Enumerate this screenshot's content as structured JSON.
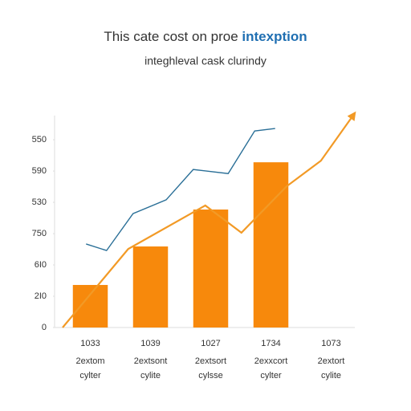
{
  "chart_data": {
    "type": "bar",
    "title": "This cate cost on proe",
    "title_highlight": "intexption",
    "subtitle": "integhleval cask clurindy",
    "categories": [
      "1033",
      "1039",
      "1027",
      "1734",
      "1073"
    ],
    "category_lines": [
      [
        "2extom",
        "cylter"
      ],
      [
        "2extsont",
        "cylite"
      ],
      [
        "2extsort",
        "cylsse"
      ],
      [
        "2exxcort",
        "cylter"
      ],
      [
        "2extort",
        "cylite"
      ]
    ],
    "values": [
      1.36,
      2.59,
      3.77,
      5.28,
      null
    ],
    "color": "#f7890c",
    "lines": [
      {
        "color": "#2a6f97",
        "x": [
          0.43,
          0.77,
          1.21,
          1.76,
          2.21,
          2.79,
          3.23,
          3.57
        ],
        "values": [
          2.67,
          2.46,
          3.64,
          4.08,
          5.05,
          4.92,
          6.28,
          6.36
        ]
      },
      {
        "color": "#f29a26",
        "arrow": true,
        "x": [
          0.04,
          1.13,
          2.41,
          3.01,
          3.76,
          4.33,
          4.87
        ],
        "values": [
          0,
          2.51,
          3.9,
          3.03,
          4.51,
          5.33,
          6.79
        ]
      }
    ],
    "xlim": [
      0,
      5
    ],
    "ylim": [
      0,
      6.9
    ],
    "yticks": [
      {
        "value": 0,
        "label": "0"
      },
      {
        "value": 1,
        "label": "2I0"
      },
      {
        "value": 2,
        "label": "6I0"
      },
      {
        "value": 3,
        "label": "750"
      },
      {
        "value": 4,
        "label": "530"
      },
      {
        "value": 5,
        "label": "590"
      },
      {
        "value": 6,
        "label": "550"
      }
    ]
  }
}
